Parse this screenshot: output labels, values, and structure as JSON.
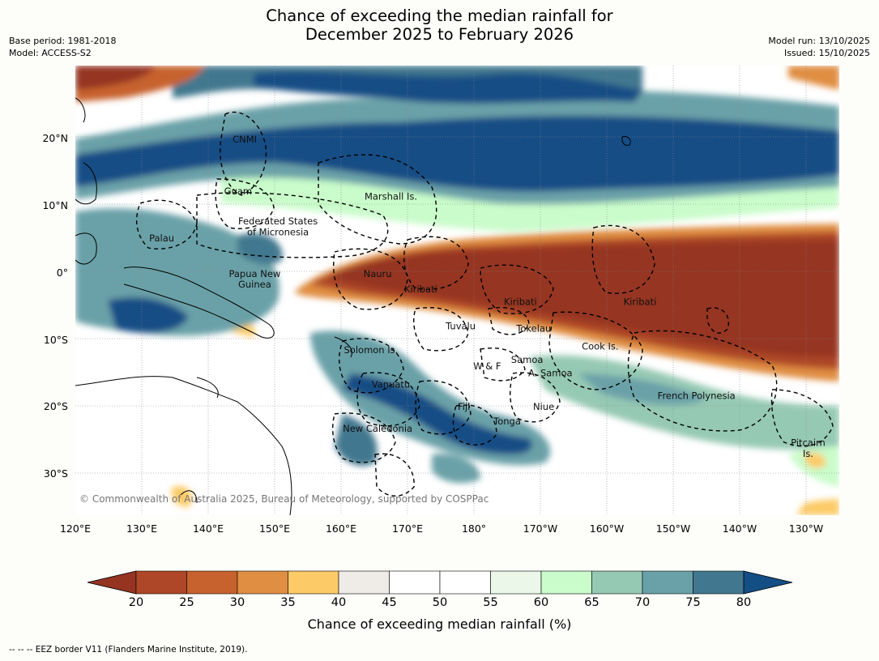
{
  "title_line1": "Chance of exceeding the median rainfall for",
  "title_line2": "December 2025 to February 2026",
  "meta": {
    "base_period": "Base period: 1981-2018",
    "model": "Model: ACCESS-S2",
    "model_run": "Model run: 13/10/2025",
    "issued": "Issued: 15/10/2025"
  },
  "map": {
    "lon_range": [
      120,
      235
    ],
    "lat_range": [
      -36,
      31
    ],
    "lon_ticks": [
      "120°E",
      "130°E",
      "140°E",
      "150°E",
      "160°E",
      "170°E",
      "180°",
      "170°W",
      "160°W",
      "150°W",
      "140°W",
      "130°W"
    ],
    "lat_ticks": [
      "20°N",
      "10°N",
      "0°",
      "10°S",
      "20°S",
      "30°S"
    ],
    "copyright": "© Commonwealth of Australia 2025, Bureau of Meteorology, supported by COSPPac",
    "places": [
      {
        "text": "CNMI",
        "lon": 145.5,
        "lat": 20.0
      },
      {
        "text": "Guam",
        "lon": 144.5,
        "lat": 12.3
      },
      {
        "text": "Marshall Is.",
        "lon": 167.5,
        "lat": 11.5
      },
      {
        "text": "Federated States",
        "lon": 150.5,
        "lat": 7.8
      },
      {
        "text": "of Micronesia",
        "lon": 150.5,
        "lat": 6.2
      },
      {
        "text": "Palau",
        "lon": 133,
        "lat": 5.3
      },
      {
        "text": "Papua New",
        "lon": 147,
        "lat": 0.0
      },
      {
        "text": "Guinea",
        "lon": 147,
        "lat": -1.6
      },
      {
        "text": "Nauru",
        "lon": 165.5,
        "lat": 0.0
      },
      {
        "text": "Kiribati",
        "lon": 172,
        "lat": -2.3
      },
      {
        "text": "Kiribati",
        "lon": 187,
        "lat": -4.2
      },
      {
        "text": "Kiribati",
        "lon": 205,
        "lat": -4.2
      },
      {
        "text": "Tuvalu",
        "lon": 178,
        "lat": -7.8
      },
      {
        "text": "Tokelau",
        "lon": 189,
        "lat": -8.2
      },
      {
        "text": "Cook Is.",
        "lon": 199,
        "lat": -10.8
      },
      {
        "text": "Solomon Is.",
        "lon": 164.5,
        "lat": -11.4
      },
      {
        "text": "Samoa",
        "lon": 188,
        "lat": -12.8
      },
      {
        "text": "W & F",
        "lon": 182,
        "lat": -13.8
      },
      {
        "text": "A. Samoa",
        "lon": 191.5,
        "lat": -14.8
      },
      {
        "text": "Vanuatu",
        "lon": 167.5,
        "lat": -16.5
      },
      {
        "text": "Fiji",
        "lon": 178.5,
        "lat": -19.8
      },
      {
        "text": "Niue",
        "lon": 190.5,
        "lat": -19.8
      },
      {
        "text": "Tonga",
        "lon": 185,
        "lat": -22.0
      },
      {
        "text": "New Caledonia",
        "lon": 165.5,
        "lat": -23.1
      },
      {
        "text": "French Polynesia",
        "lon": 213.5,
        "lat": -18.2
      },
      {
        "text": "Pitcairn",
        "lon": 230.3,
        "lat": -25.2
      },
      {
        "text": "Is.",
        "lon": 230.3,
        "lat": -26.8
      }
    ]
  },
  "colorbar": {
    "label": "Chance of exceeding median rainfall (%)",
    "ticks": [
      "20",
      "25",
      "30",
      "35",
      "40",
      "45",
      "50",
      "55",
      "60",
      "65",
      "70",
      "75",
      "80"
    ],
    "colors": [
      "#ae4727",
      "#c7622e",
      "#e08e42",
      "#fccb68",
      "#efebe6",
      "#ffffff",
      "#ffffff",
      "#eaf7e9",
      "#c9fcca",
      "#96c9b4",
      "#6aa1a8",
      "#42788f"
    ],
    "under_color": "#953421",
    "over_color": "#134e85"
  },
  "footnote": "--  --  -- EEZ border V11 (Flanders Marine Institute, 2019)."
}
